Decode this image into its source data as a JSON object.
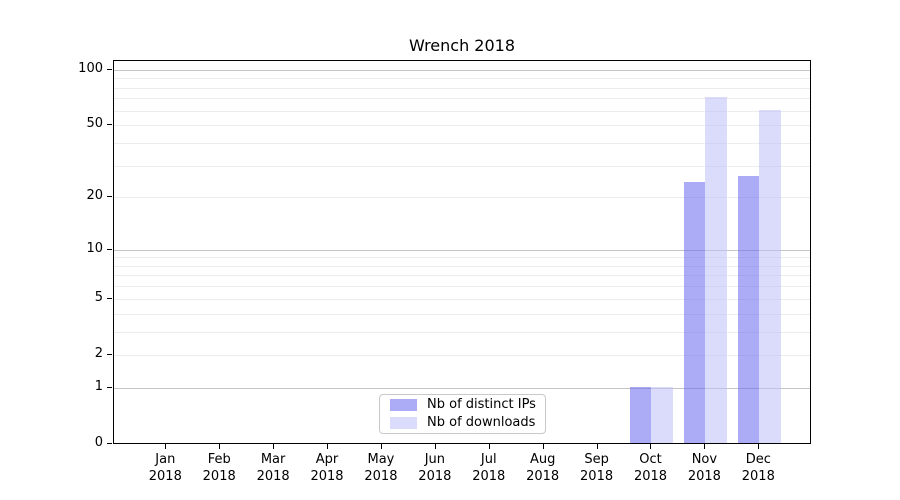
{
  "title": "Wrench 2018",
  "chart_data": {
    "type": "bar",
    "title": "Wrench 2018",
    "categories": [
      "Jan",
      "Feb",
      "Mar",
      "Apr",
      "May",
      "Jun",
      "Jul",
      "Aug",
      "Sep",
      "Oct",
      "Nov",
      "Dec"
    ],
    "category_year": "2018",
    "series": [
      {
        "name": "Nb of distinct IPs",
        "color_hex": "#a9a9f3",
        "color_rgba": "rgba(104,104,238,0.55)",
        "values": [
          0,
          0,
          0,
          0,
          0,
          0,
          0,
          0,
          0,
          1,
          24,
          26
        ]
      },
      {
        "name": "Nb of downloads",
        "color_hex": "#dadaf9",
        "color_rgba": "rgba(189,189,249,0.55)",
        "values": [
          0,
          0,
          0,
          0,
          0,
          0,
          0,
          0,
          0,
          1,
          70,
          60
        ]
      }
    ],
    "xlabel": "",
    "ylabel": "",
    "yscale": "log1p",
    "yticks": [
      0,
      1,
      2,
      5,
      10,
      20,
      50,
      100
    ],
    "major_gridlines": [
      1,
      10,
      100
    ],
    "minor_gridlines": [
      2,
      3,
      4,
      5,
      6,
      7,
      8,
      9,
      20,
      30,
      40,
      50,
      60,
      70,
      80,
      90
    ],
    "ylim": [
      0,
      113
    ],
    "grid": true,
    "legend_position": "lower center"
  },
  "colors": {
    "background": "#ffffff",
    "spine": "#000000",
    "grid_major": "#c5c5c5",
    "grid_minor": "#ededed",
    "legend_border": "#c9c9c9",
    "text": "#000000"
  }
}
